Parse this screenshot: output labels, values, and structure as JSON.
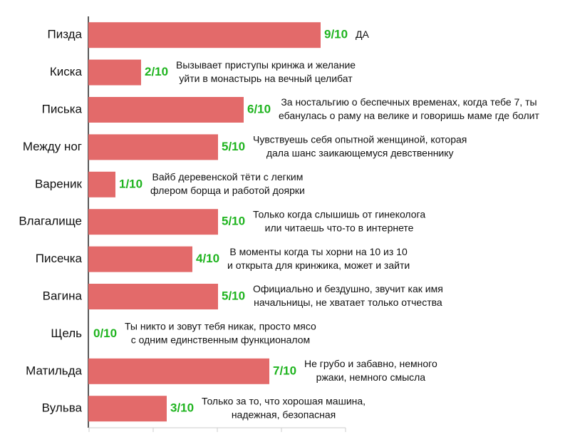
{
  "chart_data": {
    "type": "bar",
    "orientation": "horizontal",
    "color": "#e36a6a",
    "value_label_color": "#1fb41f",
    "categories": [
      "Пизда",
      "Киска",
      "Писька",
      "Между ног",
      "Вареник",
      "Влагалище",
      "Писечка",
      "Вагина",
      "Щель",
      "Матильда",
      "Вульва"
    ],
    "values": [
      9,
      2,
      6,
      5,
      1,
      5,
      4,
      5,
      0,
      7,
      3
    ],
    "value_labels": [
      "9/10",
      "2/10",
      "6/10",
      "5/10",
      "1/10",
      "5/10",
      "4/10",
      "5/10",
      "0/10",
      "7/10",
      "3/10"
    ],
    "annotations": [
      [
        "ДА"
      ],
      [
        "Вызывает приступы кринжа и желание",
        "уйти в монастырь на вечный целибат"
      ],
      [
        "За ностальгию о беспечных временах, когда тебе 7, ты",
        "ебанулась о раму на велике и говоришь маме где болит"
      ],
      [
        "Чувствуешь себя опытной женщиной, которая",
        "дала шанс заикающемуся девственнику"
      ],
      [
        "Вайб деревенской тёти с легким",
        "флером борща и работой доярки"
      ],
      [
        "Только когда слышишь от гинеколога",
        "или читаешь что-то в интернете"
      ],
      [
        "В моменты когда ты хорни на 10 из 10",
        "и открыта для кринжика, может и зайти"
      ],
      [
        "Официально и бездушно, звучит как имя",
        "начальницы, не хватает только отчества"
      ],
      [
        "Ты никто и зовут тебя никак, просто мясо",
        "с одним единственным функционалом"
      ],
      [
        "Не грубо и забавно, немного",
        "ржаки, немного смысла"
      ],
      [
        "Только за то, что хорошая машина,",
        "надежная, безопасная"
      ]
    ],
    "xlim": [
      0,
      10
    ],
    "xticks": [
      0,
      2.5,
      5,
      7.5,
      10
    ]
  }
}
